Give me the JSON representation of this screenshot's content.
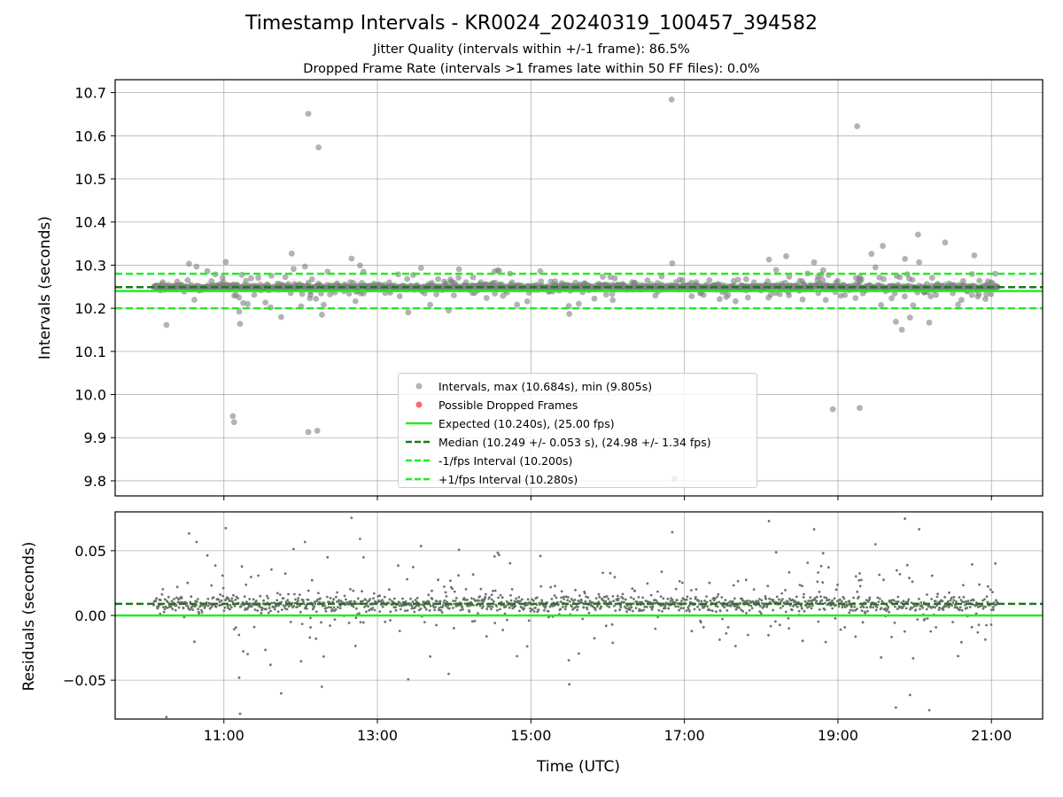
{
  "title": "Timestamp Intervals - KR0024_20240319_100457_394582",
  "subtitle_1": "Jitter Quality (intervals within +/-1 frame): 86.5%",
  "subtitle_2": "Dropped Frame Rate (intervals >1 frames late within 50 FF files): 0.0%",
  "colors": {
    "points": "#808080",
    "dropped": "#ff4444",
    "expected": "#22ee22",
    "median": "#1a7a1a",
    "bounds": "#22ee22",
    "grid": "#b0b0b0"
  },
  "legend": [
    {
      "key": "intervals",
      "label": "Intervals, max (10.684s), min (9.805s)",
      "style": "grey-point"
    },
    {
      "key": "dropped",
      "label": "Possible Dropped Frames",
      "style": "red-point"
    },
    {
      "key": "expected",
      "label": "Expected (10.240s), (25.00 fps)",
      "style": "green-solid"
    },
    {
      "key": "median",
      "label": "Median (10.249 +/- 0.053 s), (24.98 +/- 1.34 fps)",
      "style": "darkgreen-dashed"
    },
    {
      "key": "lower",
      "label": "-1/fps Interval (10.200s)",
      "style": "green-dashed"
    },
    {
      "key": "upper",
      "label": "+1/fps Interval (10.280s)",
      "style": "green-dashed"
    }
  ],
  "chart_data": [
    {
      "type": "scatter",
      "ylabel": "Intervals (seconds)",
      "xlim": [
        "09:35",
        "21:40"
      ],
      "ylim": [
        9.765,
        10.73
      ],
      "yticks": [
        "9.8",
        "9.9",
        "10.0",
        "10.1",
        "10.2",
        "10.3",
        "10.4",
        "10.5",
        "10.6",
        "10.7"
      ],
      "grid": true,
      "legend_position": "lower center",
      "x_range": [
        "10:05",
        "21:05"
      ],
      "max": 10.684,
      "min": 9.805,
      "lines": [
        {
          "name": "Expected",
          "y": 10.24
        },
        {
          "name": "Median",
          "y": 10.249
        },
        {
          "name": "-1/fps Interval",
          "y": 10.2
        },
        {
          "name": "+1/fps Interval",
          "y": 10.28
        }
      ],
      "notable_points": [
        {
          "x": "16:50",
          "y": 10.684
        },
        {
          "x": "12:06",
          "y": 10.651
        },
        {
          "x": "12:14",
          "y": 10.573
        },
        {
          "x": "19:15",
          "y": 10.622
        },
        {
          "x": "16:52",
          "y": 9.805
        },
        {
          "x": "11:07",
          "y": 9.95
        },
        {
          "x": "11:08",
          "y": 9.936
        },
        {
          "x": "12:06",
          "y": 9.913
        },
        {
          "x": "12:13",
          "y": 9.916
        },
        {
          "x": "18:56",
          "y": 9.966
        },
        {
          "x": "19:17",
          "y": 9.969
        }
      ]
    },
    {
      "type": "scatter",
      "xlabel": "Time (UTC)",
      "ylabel": "Residuals (seconds)",
      "xticks": [
        "11:00",
        "13:00",
        "15:00",
        "17:00",
        "19:00",
        "21:00"
      ],
      "yticks": [
        "−0.05",
        "0.00",
        "0.05"
      ],
      "ylim": [
        -0.08,
        0.08
      ],
      "grid": true,
      "lines": [
        {
          "name": "Expected",
          "y": 0.0
        },
        {
          "name": "Median",
          "y": 0.009
        }
      ]
    }
  ]
}
